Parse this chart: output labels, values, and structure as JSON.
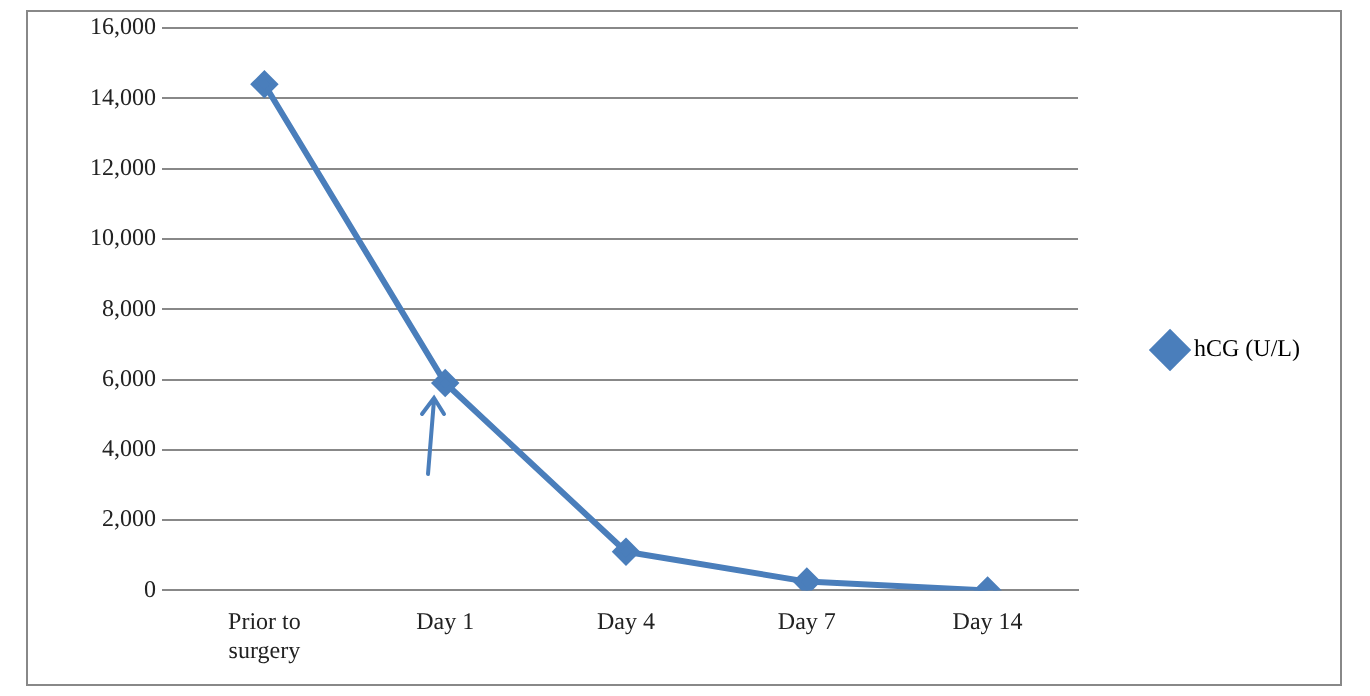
{
  "chart_data": {
    "type": "line",
    "categories": [
      "Prior to surgery",
      "Day 1",
      "Day 4",
      "Day 7",
      "Day 14"
    ],
    "series": [
      {
        "name": "hCG (U/L)",
        "color": "#4a7ebb",
        "values": [
          14400,
          5900,
          1100,
          250,
          0
        ]
      }
    ],
    "ylim": [
      0,
      16000
    ],
    "yticks": [
      0,
      {
        "value": 2000,
        "label": "2,000"
      },
      {
        "value": 4000,
        "label": "4,000"
      },
      {
        "value": 6000,
        "label": "6,000"
      },
      {
        "value": 8000,
        "label": "8,000"
      },
      {
        "value": 10000,
        "label": "10,000"
      },
      {
        "value": 12000,
        "label": "12,000"
      },
      {
        "value": 14000,
        "label": "14,000"
      },
      {
        "value": 16000,
        "label": "16,000"
      }
    ],
    "grid": "y",
    "legend": "right",
    "marker": "diamond",
    "line_style": "solid"
  }
}
